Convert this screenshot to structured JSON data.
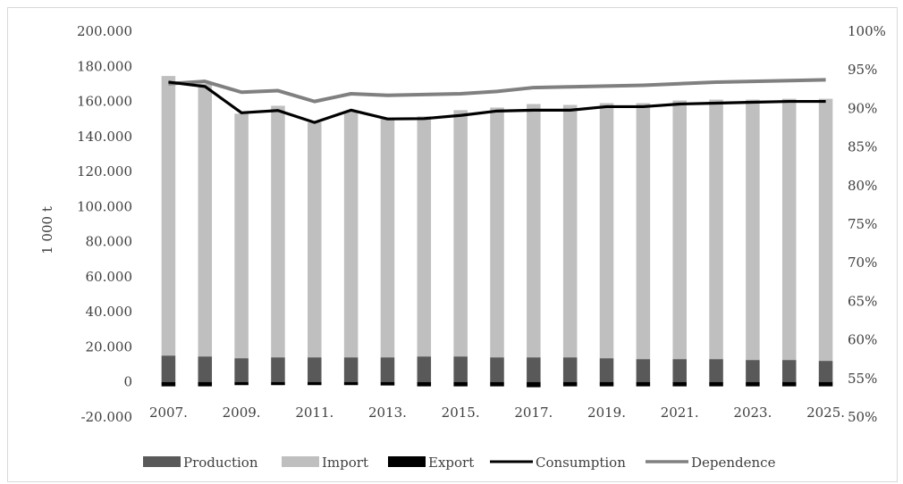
{
  "chart_data": {
    "type": "bar",
    "stacked": true,
    "categories": [
      "2007.",
      "2008.",
      "2009.",
      "2010.",
      "2011.",
      "2012.",
      "2013.",
      "2014.",
      "2015.",
      "2016.",
      "2017.",
      "2018.",
      "2019.",
      "2020.",
      "2021.",
      "2022.",
      "2023.",
      "2024.",
      "2025."
    ],
    "x_tick_labels": [
      "2007.",
      "2009.",
      "2011.",
      "2013.",
      "2015.",
      "2017.",
      "2019.",
      "2021.",
      "2023.",
      "2025."
    ],
    "ylabel": "1 000 t",
    "ylim": [
      -20000,
      200000
    ],
    "y_ticks": [
      "-20.000",
      "0",
      "20.000",
      "40.000",
      "60.000",
      "80.000",
      "100.000",
      "120.000",
      "140.000",
      "160.000",
      "180.000",
      "200.000"
    ],
    "y2lim": [
      0.5,
      1.0
    ],
    "y2_ticks": [
      "50%",
      "55%",
      "60%",
      "65%",
      "70%",
      "75%",
      "80%",
      "85%",
      "90%",
      "95%",
      "100%"
    ],
    "legend_position": "bottom",
    "series": [
      {
        "name": "Production",
        "kind": "bar",
        "color": "#595959",
        "values": [
          15000,
          14500,
          13500,
          14000,
          14000,
          14000,
          14000,
          14500,
          14500,
          14000,
          14000,
          14000,
          13500,
          13000,
          13000,
          13000,
          12500,
          12500,
          12000
        ]
      },
      {
        "name": "Import",
        "kind": "bar",
        "color": "#bfbfbf",
        "values": [
          159500,
          155500,
          139500,
          143500,
          134000,
          140500,
          136000,
          137000,
          140500,
          142500,
          144500,
          144000,
          145500,
          146000,
          147500,
          148000,
          148500,
          149000,
          149500
        ]
      },
      {
        "name": "Export",
        "kind": "bar",
        "color": "#000000",
        "values": [
          -2500,
          -2500,
          -1800,
          -1800,
          -1800,
          -1800,
          -2000,
          -2500,
          -2500,
          -2500,
          -3000,
          -2500,
          -2500,
          -2500,
          -2500,
          -2500,
          -2500,
          -2500,
          -2500
        ]
      },
      {
        "name": "Consumption",
        "kind": "line",
        "axis": "left",
        "color": "#000000",
        "values": [
          171000,
          168500,
          153500,
          154800,
          148000,
          155000,
          150000,
          150200,
          152000,
          154500,
          155000,
          155000,
          157000,
          157000,
          158500,
          159000,
          159500,
          160000,
          160000
        ]
      },
      {
        "name": "Dependence",
        "kind": "line",
        "axis": "right",
        "color": "#808080",
        "values": [
          0.932,
          0.935,
          0.921,
          0.923,
          0.909,
          0.919,
          0.917,
          0.918,
          0.919,
          0.922,
          0.927,
          0.928,
          0.929,
          0.93,
          0.932,
          0.934,
          0.935,
          0.936,
          0.937
        ]
      }
    ]
  }
}
